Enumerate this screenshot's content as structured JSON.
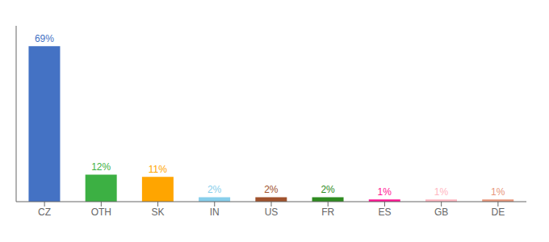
{
  "chart_data": {
    "type": "bar",
    "categories": [
      "CZ",
      "OTH",
      "SK",
      "IN",
      "US",
      "FR",
      "ES",
      "GB",
      "DE"
    ],
    "values": [
      69,
      12,
      11,
      2,
      2,
      2,
      1,
      1,
      1
    ],
    "value_labels": [
      "69%",
      "12%",
      "11%",
      "2%",
      "2%",
      "2%",
      "1%",
      "1%",
      "1%"
    ],
    "colors": [
      "#4472C4",
      "#3CB043",
      "#FFA500",
      "#87CEEB",
      "#A0522D",
      "#2E8B20",
      "#FF1493",
      "#FFB6C1",
      "#E8967A"
    ],
    "ylim": [
      0,
      78
    ],
    "data_labels": true,
    "tick_labels": "x",
    "grid": false
  }
}
